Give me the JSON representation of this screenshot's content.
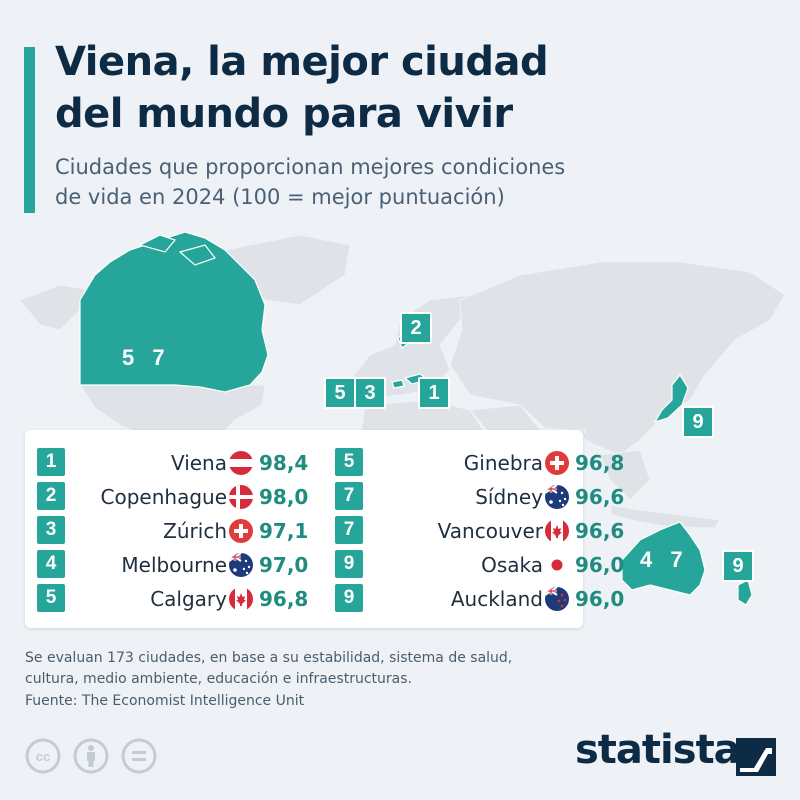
{
  "header": {
    "title_line1": "Viena, la mejor ciudad",
    "title_line2": "del mundo para vivir",
    "subtitle_line1": "Ciudades que proporcionan mejores condiciones",
    "subtitle_line2": "de vida en 2024 (100 = mejor puntuación)"
  },
  "map_labels": {
    "canada": "5 7",
    "denmark": "2",
    "switzerland_a": "5",
    "switzerland_b": "3",
    "austria": "1",
    "japan": "9",
    "australia": "4 7",
    "new_zealand": "9"
  },
  "chart_data": {
    "type": "table",
    "title": "Viena, la mejor ciudad del mundo para vivir",
    "subtitle": "Ciudades que proporcionan mejores condiciones de vida en 2024 (100 = mejor puntuación)",
    "columns": [
      "rank",
      "city",
      "country_flag",
      "score"
    ],
    "rows": [
      {
        "rank": "1",
        "city": "Viena",
        "flag": "austria",
        "score": "98,4",
        "value": 98.4
      },
      {
        "rank": "2",
        "city": "Copenhague",
        "flag": "denmark",
        "score": "98,0",
        "value": 98.0
      },
      {
        "rank": "3",
        "city": "Zúrich",
        "flag": "switzerland",
        "score": "97,1",
        "value": 97.1
      },
      {
        "rank": "4",
        "city": "Melbourne",
        "flag": "australia",
        "score": "97,0",
        "value": 97.0
      },
      {
        "rank": "5",
        "city": "Calgary",
        "flag": "canada",
        "score": "96,8",
        "value": 96.8
      },
      {
        "rank": "5",
        "city": "Ginebra",
        "flag": "switzerland",
        "score": "96,8",
        "value": 96.8
      },
      {
        "rank": "7",
        "city": "Sídney",
        "flag": "australia",
        "score": "96,6",
        "value": 96.6
      },
      {
        "rank": "7",
        "city": "Vancouver",
        "flag": "canada",
        "score": "96,6",
        "value": 96.6
      },
      {
        "rank": "9",
        "city": "Osaka",
        "flag": "japan",
        "score": "96,0",
        "value": 96.0
      },
      {
        "rank": "9",
        "city": "Auckland",
        "flag": "new_zealand",
        "score": "96,0",
        "value": 96.0
      }
    ]
  },
  "footer": {
    "note_line1": "Se evaluan 173 ciudades, en base a su estabilidad, sistema de salud,",
    "note_line2": "cultura, medio ambiente, educación e infraestructuras.",
    "source": "Fuente: The Economist Intelligence Unit",
    "brand": "statista",
    "license_icons": [
      "cc-icon",
      "attribution-icon",
      "no-derivatives-icon"
    ]
  },
  "colors": {
    "accent": "#26a69a",
    "title": "#0d2b45",
    "background": "#eef1f5",
    "land": "#dfe3e8"
  }
}
